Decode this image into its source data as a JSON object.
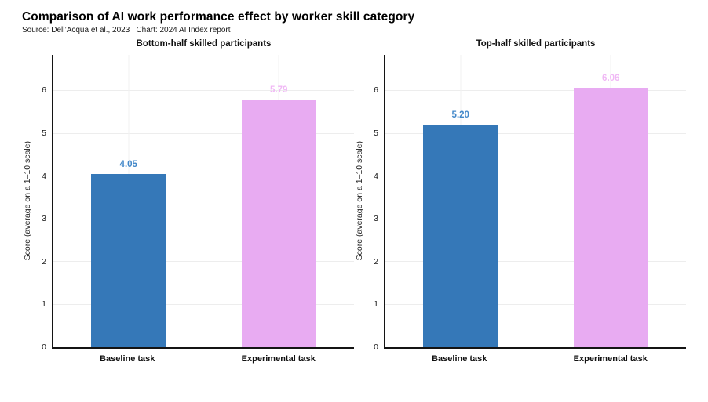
{
  "header": {
    "title": "Comparison of AI work performance effect by worker skill category",
    "source": "Source: Dell’Acqua et al., 2023 | Chart: 2024 AI Index report"
  },
  "colors": {
    "baseline_bar": "#3578b8",
    "experimental_bar": "#e8abf2",
    "baseline_label": "#4388c9",
    "experimental_label": "#f0b8f5",
    "gridline": "#ededed",
    "axis": "#141414"
  },
  "chart_data": [
    {
      "type": "bar",
      "title": "Bottom-half skilled participants",
      "categories": [
        "Baseline task",
        "Experimental task"
      ],
      "values": [
        4.05,
        5.79
      ],
      "labels": [
        "4.05",
        "5.79"
      ],
      "bar_colors": [
        "#3578b8",
        "#e8abf2"
      ],
      "label_colors": [
        "#4388c9",
        "#f0b8f5"
      ],
      "xlabel": "",
      "ylabel": "Score (average on a 1–10 scale)",
      "yticks": [
        0,
        1,
        2,
        3,
        4,
        5,
        6
      ],
      "ylim": [
        0,
        6.83
      ],
      "grid": true,
      "legend": "none"
    },
    {
      "type": "bar",
      "title": "Top-half skilled participants",
      "categories": [
        "Baseline task",
        "Experimental task"
      ],
      "values": [
        5.2,
        6.06
      ],
      "labels": [
        "5.20",
        "6.06"
      ],
      "bar_colors": [
        "#3578b8",
        "#e8abf2"
      ],
      "label_colors": [
        "#4388c9",
        "#f0b8f5"
      ],
      "xlabel": "",
      "ylabel": "Score (average on a 1–10 scale)",
      "yticks": [
        0,
        1,
        2,
        3,
        4,
        5,
        6
      ],
      "ylim": [
        0,
        6.83
      ],
      "grid": true,
      "legend": "none"
    }
  ]
}
